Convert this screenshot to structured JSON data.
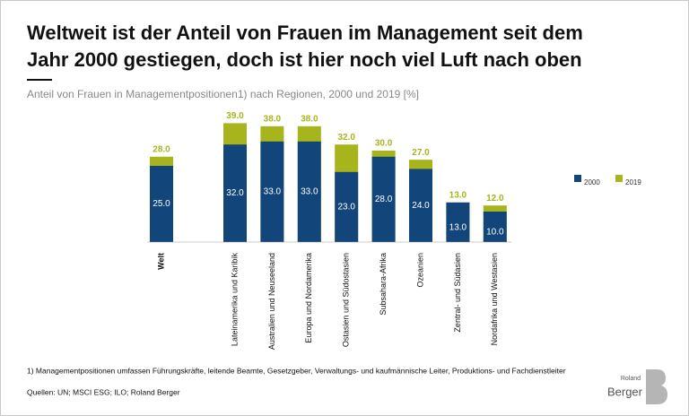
{
  "chart_data": {
    "type": "bar",
    "title": [
      "Weltweit ist der Anteil von Frauen im Management seit dem",
      "Jahr 2000 gestiegen, doch ist hier noch viel Luft nach oben"
    ],
    "subtitle": "Anteil von Frauen in Managementpositionen1) nach Regionen, 2000 und 2019 [%]",
    "categories": [
      "Welt",
      "Lateinamerika und Karibik",
      "Australien und Neuseeland",
      "Europa und Nordamerika",
      "Ostasien und Südostasien",
      "Subsahara-Afrika",
      "Ozeanien",
      "Zentral- und Südasien",
      "Nordafrika und Westasien"
    ],
    "series": [
      {
        "name": "2019",
        "color": "#a8b41c",
        "values": [
          28,
          39,
          38,
          38,
          32,
          30,
          27,
          13,
          12
        ],
        "value_labels": [
          "28.0",
          "39.0",
          "38.0",
          "38.0",
          "32.0",
          "30.0",
          "27.0",
          "13.0",
          "12.0"
        ]
      },
      {
        "name": "2000",
        "color": "#12467a",
        "values": [
          25,
          32,
          33,
          33,
          23,
          28,
          24,
          13,
          10
        ],
        "value_labels": [
          "25.0",
          "32.0",
          "33.0",
          "33.0",
          "23.0",
          "28.0",
          "24.0",
          "13.0",
          "10.0"
        ]
      }
    ],
    "ylim": [
      0,
      40
    ],
    "footnote": "1) Managementpositionen umfassen Führungskräfte, leitende Beamte, Gesetzgeber, Verwaltungs- und kaufmännische Leiter, Produktions- und Fachdienstleiter",
    "source": "Quellen: UN; MSCI ESG; ILO; Roland Berger",
    "logo": [
      "Roland",
      "Berger"
    ]
  }
}
